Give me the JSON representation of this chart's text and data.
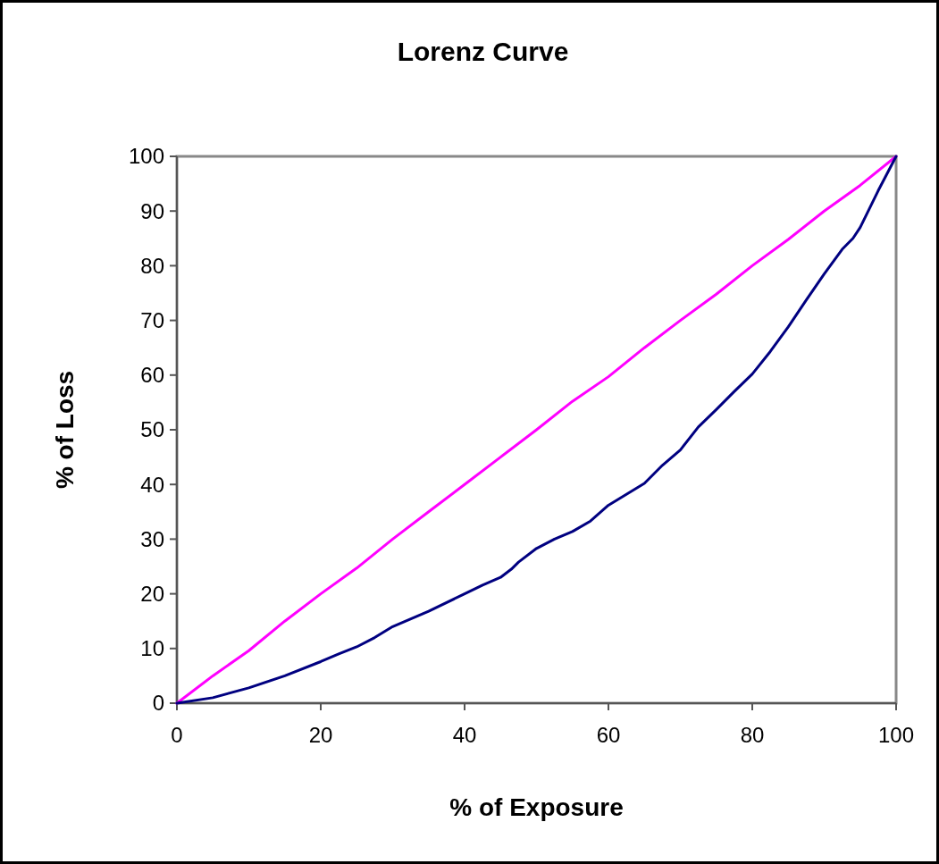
{
  "chart_data": {
    "type": "line",
    "title": "Lorenz Curve",
    "xlabel": "% of Exposure",
    "ylabel": "% of Loss",
    "xlim": [
      0,
      100
    ],
    "ylim": [
      0,
      100
    ],
    "xticks": [
      0,
      20,
      40,
      60,
      80,
      100
    ],
    "yticks": [
      0,
      10,
      20,
      30,
      40,
      50,
      60,
      70,
      80,
      90,
      100
    ],
    "grid": false,
    "marker": "none",
    "line_style": "solid",
    "series": [
      {
        "color": "#ff00ff",
        "x": [
          0,
          5,
          10,
          15,
          20,
          25,
          30,
          35,
          40,
          45,
          50,
          55,
          60,
          65,
          70,
          75,
          80,
          85,
          90,
          95,
          100
        ],
        "values": [
          0,
          5,
          9.6,
          15,
          20,
          24.7,
          30,
          35,
          40,
          45,
          50,
          55.2,
          59.7,
          65,
          70,
          74.8,
          80,
          84.8,
          90,
          94.7,
          100
        ]
      },
      {
        "color": "#000080",
        "x": [
          0,
          5,
          10,
          15,
          20,
          22.5,
          25,
          27.5,
          30,
          35,
          40,
          42.5,
          45,
          46.5,
          47.5,
          50,
          52.5,
          55,
          57.5,
          60,
          65,
          67.5,
          70,
          72.5,
          75,
          77.5,
          80,
          82.5,
          85,
          87.5,
          90,
          92.5,
          94,
          95,
          97.5,
          100
        ],
        "values": [
          0,
          1,
          2.8,
          5,
          7.6,
          9,
          10.3,
          12,
          14,
          16.8,
          20,
          21.6,
          23,
          24.5,
          25.8,
          28.3,
          30,
          31.4,
          33.3,
          36.2,
          40.2,
          43.5,
          46.3,
          50.5,
          53.7,
          57,
          60.2,
          64.3,
          68.8,
          73.7,
          78.5,
          83,
          85,
          87,
          93.7,
          100
        ]
      }
    ]
  }
}
